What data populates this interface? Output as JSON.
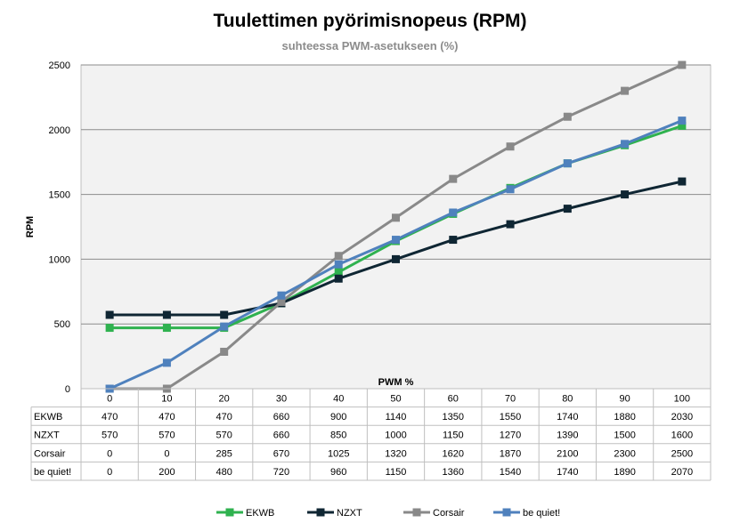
{
  "chart_data": {
    "type": "line",
    "title": "Tuulettimen pyörimisnopeus (RPM)",
    "subtitle": "suhteessa PWM-asetukseen (%)",
    "xlabel": "PWM %",
    "ylabel": "RPM",
    "ylim": [
      0,
      2500
    ],
    "yticks": [
      0,
      500,
      1000,
      1500,
      2000,
      2500
    ],
    "grid": true,
    "legend_position": "bottom",
    "categories": [
      "0",
      "10",
      "20",
      "30",
      "40",
      "50",
      "60",
      "70",
      "80",
      "90",
      "100"
    ],
    "series": [
      {
        "name": "EKWB",
        "color": "#2fb24f",
        "values": [
          470,
          470,
          470,
          660,
          900,
          1140,
          1350,
          1550,
          1740,
          1880,
          2030
        ]
      },
      {
        "name": "NZXT",
        "color": "#0f2633",
        "values": [
          570,
          570,
          570,
          660,
          850,
          1000,
          1150,
          1270,
          1390,
          1500,
          1600
        ]
      },
      {
        "name": "Corsair",
        "color": "#898989",
        "values": [
          0,
          0,
          285,
          670,
          1025,
          1320,
          1620,
          1870,
          2100,
          2300,
          2500
        ]
      },
      {
        "name": "be quiet!",
        "color": "#4f81bd",
        "values": [
          0,
          200,
          480,
          720,
          960,
          1150,
          1360,
          1540,
          1740,
          1890,
          2070
        ]
      }
    ],
    "plot_background": "#f2f2f2"
  }
}
